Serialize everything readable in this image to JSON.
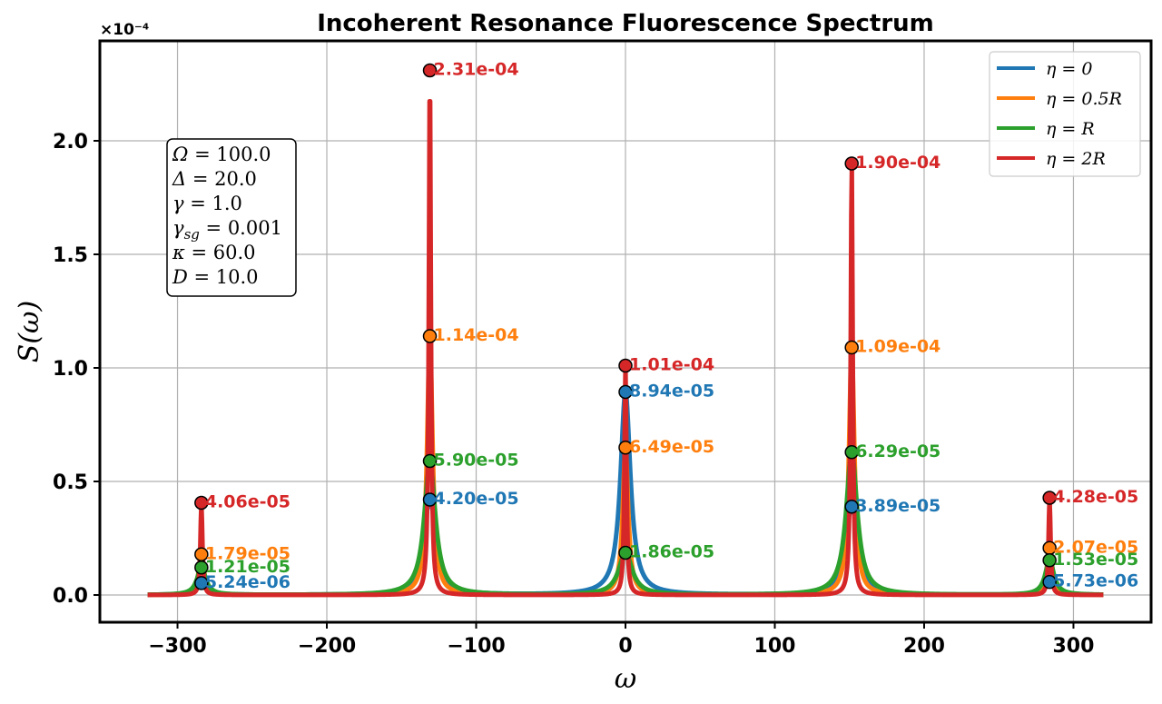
{
  "chart_data": {
    "type": "line",
    "title": "Incoherent Resonance Fluorescence Spectrum",
    "xlabel": "ω",
    "ylabel": "S(ω)",
    "y_offset_label": "×10⁻⁴",
    "xlim": [
      -352,
      352
    ],
    "ylim": [
      -1.2e-05,
      0.000244
    ],
    "x_range": [
      -320,
      320
    ],
    "xticks": [
      -300,
      -200,
      -100,
      0,
      100,
      200,
      300
    ],
    "xtick_labels": [
      "−300",
      "−200",
      "−100",
      "0",
      "100",
      "200",
      "300"
    ],
    "yticks": [
      0,
      5e-05,
      0.0001,
      0.00015,
      0.0002
    ],
    "ytick_labels": [
      "0.0",
      "0.5",
      "1.0",
      "1.5",
      "2.0"
    ],
    "grid": true,
    "legend_position": "top-right",
    "peak_positions": [
      -284,
      -131,
      0,
      151.5,
      284
    ],
    "series": [
      {
        "name": "η = 0",
        "legend_main": "η = 0",
        "color": "#1f77b4",
        "widths": [
          5.0,
          5.0,
          4.0,
          5.0,
          5.0
        ],
        "peaks": [
          5.24e-06,
          4.2e-05,
          8.94e-05,
          3.89e-05,
          5.73e-06
        ],
        "labels": [
          "5.24e-06",
          "4.20e-05",
          "8.94e-05",
          "3.89e-05",
          "5.73e-06"
        ]
      },
      {
        "name": "η = 0.5R",
        "legend_main": "η = 0.5",
        "legend_sub": "R",
        "color": "#ff7f0e",
        "widths": [
          2.2,
          2.2,
          2.2,
          2.2,
          2.2
        ],
        "peaks": [
          1.79e-05,
          0.000114,
          6.49e-05,
          0.000109,
          2.07e-05
        ],
        "labels": [
          "1.79e-05",
          "1.14e-04",
          "6.49e-05",
          "1.09e-04",
          "2.07e-05"
        ]
      },
      {
        "name": "η = R",
        "legend_main": "η = ",
        "legend_sub": "R",
        "color": "#2ca02c",
        "widths": [
          3.5,
          4.5,
          5.5,
          4.5,
          3.5
        ],
        "peaks": [
          1.21e-05,
          5.9e-05,
          1.86e-05,
          6.29e-05,
          1.53e-05
        ],
        "labels": [
          "1.21e-05",
          "5.90e-05",
          "1.86e-05",
          "6.29e-05",
          "1.53e-05"
        ]
      },
      {
        "name": "η = 2R",
        "legend_main": "η = 2",
        "legend_sub": "R",
        "color": "#d62728",
        "widths": [
          0.8,
          0.8,
          0.8,
          0.8,
          0.8
        ],
        "peaks": [
          4.06e-05,
          0.000231,
          0.000101,
          0.00019,
          4.28e-05
        ],
        "labels": [
          "4.06e-05",
          "2.31e-04",
          "1.01e-04",
          "1.90e-04",
          "4.28e-05"
        ]
      }
    ],
    "parameters": [
      {
        "sym": "Ω",
        "sub": "",
        "val": " = 100.0"
      },
      {
        "sym": "Δ",
        "sub": "",
        "val": " = 20.0"
      },
      {
        "sym": "γ",
        "sub": "",
        "val": " = 1.0"
      },
      {
        "sym": "γ",
        "sub": "sg",
        "val": " = 0.001"
      },
      {
        "sym": "κ",
        "sub": "",
        "val": " = 60.0"
      },
      {
        "sym": "D",
        "sub": "",
        "val": " = 10.0"
      }
    ]
  }
}
